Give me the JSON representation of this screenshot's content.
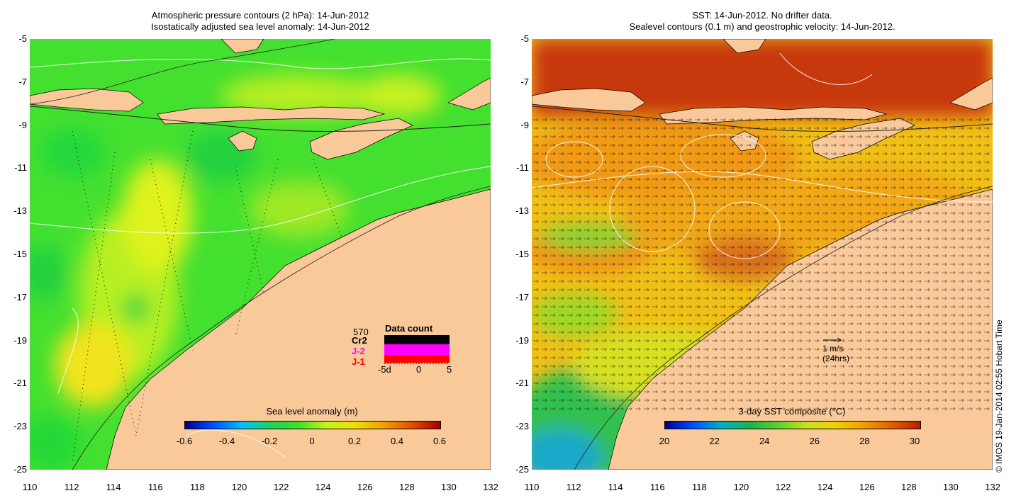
{
  "left_panel": {
    "title_line1": "Atmospheric pressure contours (2 hPa): 14-Jun-2012",
    "title_line2": "Isostatically adjusted sea level anomaly: 14-Jun-2012",
    "colorbar": {
      "title": "Sea level anomaly (m)",
      "ticks": [
        "-0.6",
        "-0.4",
        "-0.2",
        "0",
        "0.2",
        "0.4",
        "0.6"
      ]
    },
    "data_count": {
      "title": "Data count",
      "total": "570",
      "missions": [
        {
          "label": "Cr2",
          "color": "#000000"
        },
        {
          "label": "J-2",
          "color": "#ff00ff"
        },
        {
          "label": "J-1",
          "color": "#ff0000"
        }
      ],
      "axis_labels": [
        "-5d",
        "0",
        "5"
      ]
    }
  },
  "right_panel": {
    "title_line1": "SST: 14-Jun-2012. No drifter data.",
    "title_line2": "Sealevel contours (0.1 m) and geostrophic velocity: 14-Jun-2012.",
    "colorbar": {
      "title": "3-day SST composite (°C)",
      "ticks": [
        "20",
        "22",
        "24",
        "26",
        "28",
        "30"
      ]
    },
    "velocity_scale": {
      "line1": "1 m/s",
      "line2": "(24hrs)"
    }
  },
  "axes": {
    "y_ticks": [
      "-5",
      "-7",
      "-9",
      "-11",
      "-13",
      "-15",
      "-17",
      "-19",
      "-21",
      "-23",
      "-25"
    ],
    "x_ticks": [
      "110",
      "112",
      "114",
      "116",
      "118",
      "120",
      "122",
      "124",
      "126",
      "128",
      "130",
      "132"
    ]
  },
  "copyright": "© IMOS 19-Jan-2014 02:55 Hobart Time",
  "colors": {
    "land": "#f9c99a",
    "ocean_green": "#3fe02a",
    "sst_orange": "#f29a16",
    "sst_red": "#c0300c"
  }
}
